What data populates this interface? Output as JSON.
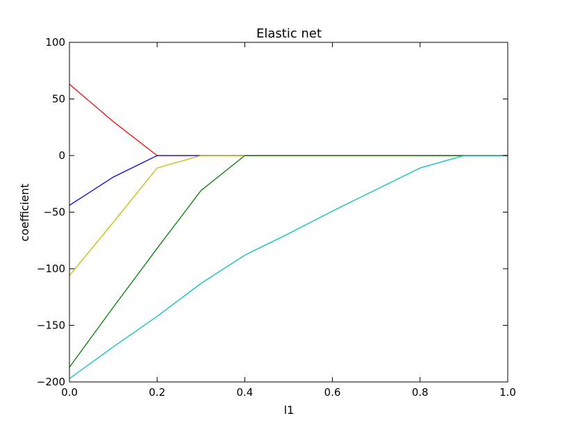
{
  "chart_data": {
    "type": "line",
    "title": "Elastic net",
    "xlabel": "l1",
    "ylabel": "coefficient",
    "xlim": [
      0.0,
      1.0
    ],
    "ylim": [
      -200,
      100
    ],
    "grid": false,
    "legend": "none",
    "x_ticks": [
      0.0,
      0.2,
      0.4,
      0.6,
      0.8,
      1.0
    ],
    "x_tick_labels": [
      "0.0",
      "0.2",
      "0.4",
      "0.6",
      "0.8",
      "1.0"
    ],
    "y_ticks": [
      -200,
      -150,
      -100,
      -50,
      0,
      50,
      100
    ],
    "y_tick_labels": [
      "−200",
      "−150",
      "−100",
      "−50",
      "0",
      "50",
      "100"
    ],
    "x": [
      0.0,
      0.1,
      0.2,
      0.3,
      0.4,
      0.5,
      0.6,
      0.7,
      0.8,
      0.9,
      1.0
    ],
    "series": [
      {
        "color": "#ff0000",
        "values": [
          63,
          30,
          0,
          0,
          0,
          0,
          0,
          0,
          0,
          0,
          0
        ]
      },
      {
        "color": "#0000ff",
        "values": [
          -44,
          -19,
          0,
          0,
          0,
          0,
          0,
          0,
          0,
          0,
          0
        ]
      },
      {
        "color": "#bfbf00",
        "values": [
          -106,
          -59,
          -11,
          0,
          0,
          0,
          0,
          0,
          0,
          0,
          0
        ]
      },
      {
        "color": "#008000",
        "values": [
          -187,
          -134,
          -82,
          -31,
          0,
          0,
          0,
          0,
          0,
          0,
          0
        ]
      },
      {
        "color": "#00bfbf",
        "values": [
          -197,
          -169,
          -142,
          -113,
          -88,
          -69,
          -49,
          -30,
          -11,
          0,
          0
        ]
      }
    ]
  }
}
